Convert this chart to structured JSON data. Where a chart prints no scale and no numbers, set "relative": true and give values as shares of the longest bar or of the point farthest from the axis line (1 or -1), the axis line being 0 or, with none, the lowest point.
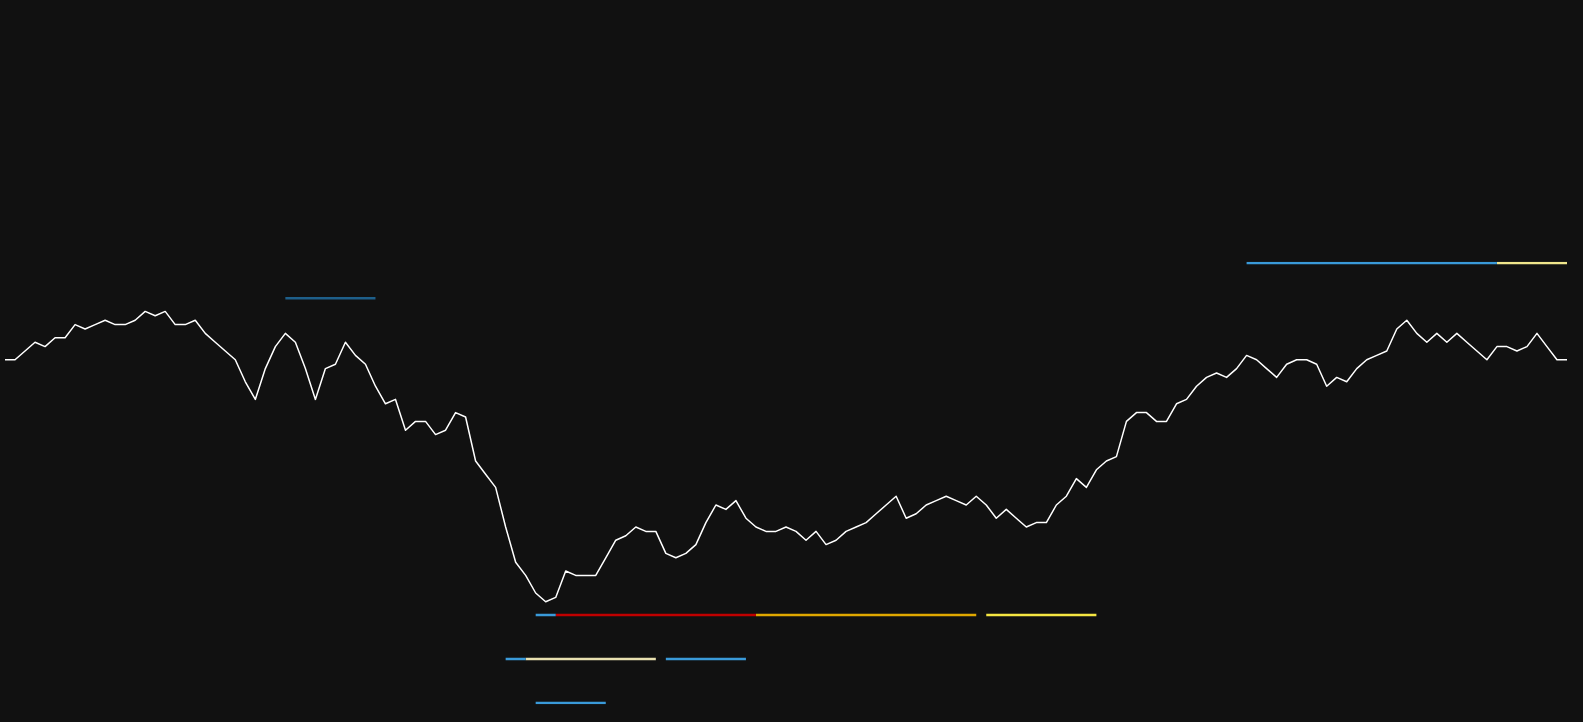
{
  "chart_data": {
    "type": "line",
    "relative": true,
    "legend": false,
    "categories": [
      null,
      null,
      null,
      null,
      null,
      null,
      null,
      null,
      null,
      null,
      null,
      null,
      null,
      null,
      null,
      null,
      null,
      null,
      null,
      null,
      null,
      null,
      null,
      null,
      null,
      null,
      null,
      null,
      null,
      null,
      null,
      null,
      null,
      null,
      null,
      null,
      null,
      null,
      null,
      null,
      null,
      null,
      null,
      null,
      null,
      null,
      null,
      null,
      null,
      null,
      null,
      null,
      null,
      null,
      null,
      null,
      null,
      null,
      null,
      null,
      null,
      null,
      null,
      null,
      null,
      null,
      null,
      null,
      null,
      null,
      null,
      null,
      null,
      null,
      null,
      null,
      null,
      null,
      null,
      null,
      null,
      null,
      null,
      null,
      null,
      null,
      null,
      null,
      null,
      null,
      null,
      null,
      null,
      null,
      null,
      null,
      null,
      null,
      null,
      null,
      null,
      null,
      null,
      null,
      null,
      null,
      null,
      null,
      null,
      null,
      null,
      null,
      null,
      null,
      null,
      null,
      null,
      null,
      null,
      null,
      null,
      null,
      null,
      null,
      null,
      null,
      null,
      null,
      null,
      null,
      null,
      null,
      null,
      null,
      null,
      null,
      null,
      null,
      null,
      null,
      null,
      null,
      null,
      null,
      null,
      null,
      null,
      null,
      null,
      null,
      null,
      null,
      null,
      null,
      null,
      null,
      null
    ],
    "series": [
      {
        "color": "#ffffff",
        "values": [
          0.78,
          0.78,
          0.8,
          0.82,
          0.81,
          0.83,
          0.83,
          0.86,
          0.85,
          0.86,
          0.87,
          0.86,
          0.86,
          0.87,
          0.89,
          0.88,
          0.89,
          0.86,
          0.86,
          0.87,
          0.84,
          0.82,
          0.8,
          0.78,
          0.73,
          0.69,
          0.76,
          0.81,
          0.84,
          0.82,
          0.76,
          0.69,
          0.76,
          0.77,
          0.82,
          0.79,
          0.77,
          0.72,
          0.68,
          0.69,
          0.62,
          0.64,
          0.64,
          0.61,
          0.62,
          0.66,
          0.65,
          0.55,
          0.52,
          0.49,
          0.4,
          0.32,
          0.29,
          0.25,
          0.23,
          0.24,
          0.3,
          0.29,
          0.29,
          0.29,
          0.33,
          0.37,
          0.38,
          0.4,
          0.39,
          0.39,
          0.34,
          0.33,
          0.34,
          0.36,
          0.41,
          0.45,
          0.44,
          0.46,
          0.42,
          0.4,
          0.39,
          0.39,
          0.4,
          0.39,
          0.37,
          0.39,
          0.36,
          0.37,
          0.39,
          0.4,
          0.41,
          0.43,
          0.45,
          0.47,
          0.42,
          0.43,
          0.45,
          0.46,
          0.47,
          0.46,
          0.45,
          0.47,
          0.45,
          0.42,
          0.44,
          0.42,
          0.4,
          0.41,
          0.41,
          0.45,
          0.47,
          0.51,
          0.49,
          0.53,
          0.55,
          0.56,
          0.64,
          0.66,
          0.66,
          0.64,
          0.64,
          0.68,
          0.69,
          0.72,
          0.74,
          0.75,
          0.74,
          0.76,
          0.79,
          0.78,
          0.76,
          0.74,
          0.77,
          0.78,
          0.78,
          0.77,
          0.72,
          0.74,
          0.73,
          0.76,
          0.78,
          0.79,
          0.8,
          0.85,
          0.87,
          0.84,
          0.82,
          0.84,
          0.82,
          0.84,
          0.82,
          0.8,
          0.78,
          0.81,
          0.81,
          0.8,
          0.81,
          0.84,
          0.81,
          0.78,
          0.78
        ]
      },
      {
        "color": "#3a9ad9",
        "values": [
          null,
          null,
          null,
          null,
          null,
          null,
          null,
          null,
          null,
          null,
          null,
          null,
          null,
          null,
          null,
          null,
          null,
          null,
          null,
          null,
          null,
          null,
          null,
          null,
          null,
          null,
          null,
          null,
          null,
          null,
          null,
          null,
          null,
          null,
          null,
          null,
          null,
          null,
          null,
          null,
          null,
          null,
          null,
          null,
          null,
          null,
          null,
          null,
          null,
          null,
          null,
          null,
          null,
          null,
          null,
          null,
          null,
          null,
          null,
          null,
          null,
          null,
          null,
          null,
          null,
          null,
          null,
          null,
          null,
          null,
          null,
          null,
          null,
          null,
          null,
          null,
          null,
          null,
          null,
          null,
          null,
          null,
          null,
          null,
          null,
          null,
          null,
          null,
          null,
          null,
          null,
          null,
          null,
          null,
          null,
          null,
          null,
          null,
          null,
          null,
          null,
          null,
          null,
          null,
          null,
          null,
          null,
          null,
          null,
          null,
          null,
          null,
          null,
          null,
          null,
          null,
          null,
          null,
          null,
          null,
          null,
          null,
          null,
          null,
          1,
          1,
          1,
          1,
          1,
          1,
          1,
          1,
          1,
          1,
          1,
          1,
          1,
          1,
          1,
          1,
          1,
          1,
          1,
          1,
          1,
          1,
          1,
          1,
          1,
          1,
          null,
          null,
          null,
          null,
          null,
          null,
          null
        ]
      },
      {
        "color": "#f0e68c",
        "values": [
          null,
          null,
          null,
          null,
          null,
          null,
          null,
          null,
          null,
          null,
          null,
          null,
          null,
          null,
          null,
          null,
          null,
          null,
          null,
          null,
          null,
          null,
          null,
          null,
          null,
          null,
          null,
          null,
          null,
          null,
          null,
          null,
          null,
          null,
          null,
          null,
          null,
          null,
          null,
          null,
          null,
          null,
          null,
          null,
          null,
          null,
          null,
          null,
          null,
          null,
          null,
          null,
          null,
          null,
          null,
          null,
          null,
          null,
          null,
          null,
          null,
          null,
          null,
          null,
          null,
          null,
          null,
          null,
          null,
          null,
          null,
          null,
          null,
          null,
          null,
          null,
          null,
          null,
          null,
          null,
          null,
          null,
          null,
          null,
          null,
          null,
          null,
          null,
          null,
          null,
          null,
          null,
          null,
          null,
          null,
          null,
          null,
          null,
          null,
          null,
          null,
          null,
          null,
          null,
          null,
          null,
          null,
          null,
          null,
          null,
          null,
          null,
          null,
          null,
          null,
          null,
          null,
          null,
          null,
          null,
          null,
          null,
          null,
          null,
          null,
          null,
          null,
          null,
          null,
          null,
          null,
          null,
          null,
          null,
          null,
          null,
          null,
          null,
          null,
          null,
          null,
          null,
          null,
          null,
          null,
          null,
          null,
          null,
          null,
          1,
          1,
          1,
          1,
          1,
          1,
          1,
          1
        ]
      },
      {
        "color": "#3a9ad9",
        "values": [
          null,
          null,
          null,
          null,
          null,
          null,
          null,
          null,
          null,
          null,
          null,
          null,
          null,
          null,
          null,
          null,
          null,
          null,
          null,
          null,
          null,
          null,
          null,
          null,
          null,
          null,
          null,
          null,
          null,
          null,
          null,
          null,
          null,
          null,
          null,
          null,
          null,
          null,
          null,
          null,
          null,
          null,
          null,
          null,
          null,
          null,
          null,
          null,
          null,
          null,
          null,
          null,
          null,
          0.2,
          0.2,
          0.2,
          null,
          null,
          null,
          null,
          null,
          null,
          null,
          null,
          null,
          null,
          null,
          null,
          null,
          null,
          null,
          null,
          null,
          null,
          null,
          null,
          null,
          null,
          null,
          null,
          null,
          null,
          null,
          null,
          null,
          null,
          null,
          null,
          null,
          null,
          null,
          null,
          null,
          null,
          null,
          null,
          null,
          null,
          null,
          null,
          null,
          null,
          null,
          null,
          null,
          null,
          null,
          null,
          null,
          null,
          null,
          null,
          null,
          null,
          null,
          null,
          null,
          null,
          null,
          null,
          null,
          null,
          null,
          null,
          null,
          null,
          null,
          null,
          null,
          null,
          null,
          null,
          null,
          null,
          null,
          null,
          null,
          null,
          null,
          null,
          null,
          null,
          null,
          null,
          null,
          null,
          null,
          null,
          null,
          null,
          null,
          null,
          null,
          null,
          null,
          null,
          null
        ]
      },
      {
        "color": "#c00000",
        "values": [
          null,
          null,
          null,
          null,
          null,
          null,
          null,
          null,
          null,
          null,
          null,
          null,
          null,
          null,
          null,
          null,
          null,
          null,
          null,
          null,
          null,
          null,
          null,
          null,
          null,
          null,
          null,
          null,
          null,
          null,
          null,
          null,
          null,
          null,
          null,
          null,
          null,
          null,
          null,
          null,
          null,
          null,
          null,
          null,
          null,
          null,
          null,
          null,
          null,
          null,
          null,
          null,
          null,
          null,
          null,
          0.2,
          0.2,
          0.2,
          0.2,
          0.2,
          0.2,
          0.2,
          0.2,
          0.2,
          0.2,
          0.2,
          0.2,
          0.2,
          0.2,
          0.2,
          0.2,
          0.2,
          0.2,
          0.2,
          0.2,
          0.2,
          null,
          null,
          null,
          null,
          null,
          null,
          null,
          null,
          null,
          null,
          null,
          null,
          null,
          null,
          null,
          null,
          null,
          null,
          null,
          null,
          null,
          null,
          null,
          null,
          null,
          null,
          null,
          null,
          null,
          null,
          null,
          null,
          null,
          null,
          null,
          null,
          null,
          null,
          null,
          null,
          null,
          null,
          null,
          null,
          null,
          null,
          null,
          null,
          null,
          null,
          null,
          null,
          null,
          null,
          null,
          null,
          null,
          null,
          null,
          null,
          null,
          null,
          null,
          null,
          null,
          null,
          null,
          null,
          null,
          null,
          null,
          null,
          null,
          null,
          null,
          null,
          null,
          null,
          null,
          null,
          null
        ]
      },
      {
        "color": "#e0a800",
        "values": [
          null,
          null,
          null,
          null,
          null,
          null,
          null,
          null,
          null,
          null,
          null,
          null,
          null,
          null,
          null,
          null,
          null,
          null,
          null,
          null,
          null,
          null,
          null,
          null,
          null,
          null,
          null,
          null,
          null,
          null,
          null,
          null,
          null,
          null,
          null,
          null,
          null,
          null,
          null,
          null,
          null,
          null,
          null,
          null,
          null,
          null,
          null,
          null,
          null,
          null,
          null,
          null,
          null,
          null,
          null,
          null,
          null,
          null,
          null,
          null,
          null,
          null,
          null,
          null,
          null,
          null,
          null,
          null,
          null,
          null,
          null,
          null,
          null,
          null,
          null,
          0.2,
          0.2,
          0.2,
          0.2,
          0.2,
          0.2,
          0.2,
          0.2,
          0.2,
          0.2,
          0.2,
          0.2,
          0.2,
          0.2,
          0.2,
          0.2,
          0.2,
          0.2,
          0.2,
          0.2,
          0.2,
          0.2,
          0.2,
          null,
          null,
          null,
          null,
          null,
          null,
          null,
          null,
          null,
          null,
          null,
          null,
          null,
          null,
          null,
          null,
          null,
          null,
          null,
          null,
          null,
          null,
          null,
          null,
          null,
          null,
          null,
          null,
          null,
          null,
          null,
          null,
          null,
          null,
          null,
          null,
          null,
          null,
          null,
          null,
          null,
          null,
          null,
          null,
          null,
          null,
          null,
          null,
          null,
          null,
          null,
          null,
          null,
          null,
          null,
          null,
          null,
          null,
          null
        ]
      },
      {
        "color": "#f5e642",
        "values": [
          null,
          null,
          null,
          null,
          null,
          null,
          null,
          null,
          null,
          null,
          null,
          null,
          null,
          null,
          null,
          null,
          null,
          null,
          null,
          null,
          null,
          null,
          null,
          null,
          null,
          null,
          null,
          null,
          null,
          null,
          null,
          null,
          null,
          null,
          null,
          null,
          null,
          null,
          null,
          null,
          null,
          null,
          null,
          null,
          null,
          null,
          null,
          null,
          null,
          null,
          null,
          null,
          null,
          null,
          null,
          null,
          null,
          null,
          null,
          null,
          null,
          null,
          null,
          null,
          null,
          null,
          null,
          null,
          null,
          null,
          null,
          null,
          null,
          null,
          null,
          null,
          null,
          null,
          null,
          null,
          null,
          null,
          null,
          null,
          null,
          null,
          null,
          null,
          null,
          null,
          null,
          null,
          null,
          null,
          null,
          null,
          null,
          null,
          0.2,
          0.2,
          0.2,
          0.2,
          0.2,
          0.2,
          0.2,
          0.2,
          0.2,
          0.2,
          0.2,
          0.2,
          null,
          null,
          null,
          null,
          null,
          null,
          null,
          null,
          null,
          null,
          null,
          null,
          null,
          null,
          null,
          null,
          null,
          null,
          null,
          null,
          null,
          null,
          null,
          null,
          null,
          null,
          null,
          null,
          null,
          null,
          null,
          null,
          null,
          null,
          null,
          null,
          null,
          null,
          null,
          null,
          null,
          null,
          null,
          null,
          null,
          null,
          null
        ]
      },
      {
        "color": "#3a9ad9",
        "values": [
          null,
          null,
          null,
          null,
          null,
          null,
          null,
          null,
          null,
          null,
          null,
          null,
          null,
          null,
          null,
          null,
          null,
          null,
          null,
          null,
          null,
          null,
          null,
          null,
          null,
          null,
          null,
          null,
          null,
          null,
          null,
          null,
          null,
          null,
          null,
          null,
          null,
          null,
          null,
          null,
          null,
          null,
          null,
          null,
          null,
          null,
          null,
          null,
          null,
          null,
          0.1,
          0.1,
          0.1,
          null,
          null,
          null,
          null,
          null,
          null,
          null,
          null,
          null,
          null,
          null,
          null,
          null,
          0.1,
          0.1,
          0.1,
          0.1,
          0.1,
          0.1,
          0.1,
          0.1,
          0.1,
          null,
          null,
          null,
          null,
          null,
          null,
          null,
          null,
          null,
          null,
          null,
          null,
          null,
          null,
          null,
          null,
          null,
          null,
          null,
          null,
          null,
          null,
          null,
          null,
          null,
          null,
          null,
          null,
          null,
          null,
          null,
          null,
          null,
          null,
          null,
          null,
          null,
          null,
          null,
          null,
          null,
          null,
          null,
          null,
          null,
          null,
          null,
          null,
          null,
          null,
          null,
          null,
          null,
          null,
          null,
          null,
          null,
          null,
          null,
          null,
          null,
          null,
          null,
          null,
          null,
          null,
          null,
          null,
          null,
          null,
          null,
          null,
          null,
          null,
          null,
          null,
          null,
          null,
          null,
          null,
          null,
          null
        ]
      },
      {
        "color": "#e8e0b0",
        "values": [
          null,
          null,
          null,
          null,
          null,
          null,
          null,
          null,
          null,
          null,
          null,
          null,
          null,
          null,
          null,
          null,
          null,
          null,
          null,
          null,
          null,
          null,
          null,
          null,
          null,
          null,
          null,
          null,
          null,
          null,
          null,
          null,
          null,
          null,
          null,
          null,
          null,
          null,
          null,
          null,
          null,
          null,
          null,
          null,
          null,
          null,
          null,
          null,
          null,
          null,
          null,
          null,
          0.1,
          0.1,
          0.1,
          0.1,
          0.1,
          0.1,
          0.1,
          0.1,
          0.1,
          0.1,
          0.1,
          0.1,
          0.1,
          0.1,
          null,
          null,
          null,
          null,
          null,
          null,
          null,
          null,
          null,
          null,
          null,
          null,
          null,
          null,
          null,
          null,
          null,
          null,
          null,
          null,
          null,
          null,
          null,
          null,
          null,
          null,
          null,
          null,
          null,
          null,
          null,
          null,
          null,
          null,
          null,
          null,
          null,
          null,
          null,
          null,
          null,
          null,
          null,
          null,
          null,
          null,
          null,
          null,
          null,
          null,
          null,
          null,
          null,
          null,
          null,
          null,
          null,
          null,
          null,
          null,
          null,
          null,
          null,
          null,
          null,
          null,
          null,
          null,
          null,
          null,
          null,
          null,
          null,
          null,
          null,
          null,
          null,
          null,
          null,
          null,
          null,
          null,
          null,
          null,
          null,
          null,
          null,
          null,
          null,
          null,
          null
        ]
      },
      {
        "color": "#3a9ad9",
        "values": [
          null,
          null,
          null,
          null,
          null,
          null,
          null,
          null,
          null,
          null,
          null,
          null,
          null,
          null,
          null,
          null,
          null,
          null,
          null,
          null,
          null,
          null,
          null,
          null,
          null,
          null,
          null,
          null,
          null,
          null,
          null,
          null,
          null,
          null,
          null,
          null,
          null,
          null,
          null,
          null,
          null,
          null,
          null,
          null,
          null,
          null,
          null,
          null,
          null,
          null,
          null,
          null,
          null,
          0,
          0,
          0,
          0,
          0,
          0,
          0,
          0,
          null,
          null,
          null,
          null,
          null,
          null,
          null,
          null,
          null,
          null,
          null,
          null,
          null,
          null,
          null,
          null,
          null,
          null,
          null,
          null,
          null,
          null,
          null,
          null,
          null,
          null,
          null,
          null,
          null,
          null,
          null,
          null,
          null,
          null,
          null,
          null,
          null,
          null,
          null,
          null,
          null,
          null,
          null,
          null,
          null,
          null,
          null,
          null,
          null,
          null,
          null,
          null,
          null,
          null,
          null,
          null,
          null,
          null,
          null,
          null,
          null,
          null,
          null,
          null,
          null,
          null,
          null,
          null,
          null,
          null,
          null,
          null,
          null,
          null,
          null,
          null,
          null,
          null,
          null,
          null,
          null,
          null,
          null,
          null,
          null,
          null,
          null,
          null,
          null,
          null,
          null,
          null,
          null,
          null,
          null,
          null
        ]
      },
      {
        "color": "#1e5f8a",
        "values": [
          null,
          null,
          null,
          null,
          null,
          null,
          null,
          null,
          null,
          null,
          null,
          null,
          null,
          null,
          null,
          null,
          null,
          null,
          null,
          null,
          null,
          null,
          null,
          null,
          null,
          null,
          null,
          null,
          0.92,
          0.92,
          0.92,
          0.92,
          0.92,
          0.92,
          0.92,
          0.92,
          0.92,
          0.92,
          null,
          null,
          null,
          null,
          null,
          null,
          null,
          null,
          null,
          null,
          null,
          null,
          null,
          null,
          null,
          null,
          null,
          null,
          null,
          null,
          null,
          null,
          null,
          null,
          null,
          null,
          null,
          null,
          null,
          null,
          null,
          null,
          null,
          null,
          null,
          null,
          null,
          null,
          null,
          null,
          null,
          null,
          null,
          null,
          null,
          null,
          null,
          null,
          null,
          null,
          null,
          null,
          null,
          null,
          null,
          null,
          null,
          null,
          null,
          null,
          null,
          null,
          null,
          null,
          null,
          null,
          null,
          null,
          null,
          null,
          null,
          null,
          null,
          null,
          null,
          null,
          null,
          null,
          null,
          null,
          null,
          null,
          null,
          null,
          null,
          null,
          null,
          null,
          null,
          null,
          null,
          null,
          null,
          null,
          null,
          null,
          null,
          null,
          null,
          null,
          null,
          null,
          null,
          null,
          null,
          null,
          null,
          null,
          null,
          null,
          null,
          null,
          null,
          null,
          null,
          null,
          null,
          null,
          null
        ]
      }
    ]
  }
}
